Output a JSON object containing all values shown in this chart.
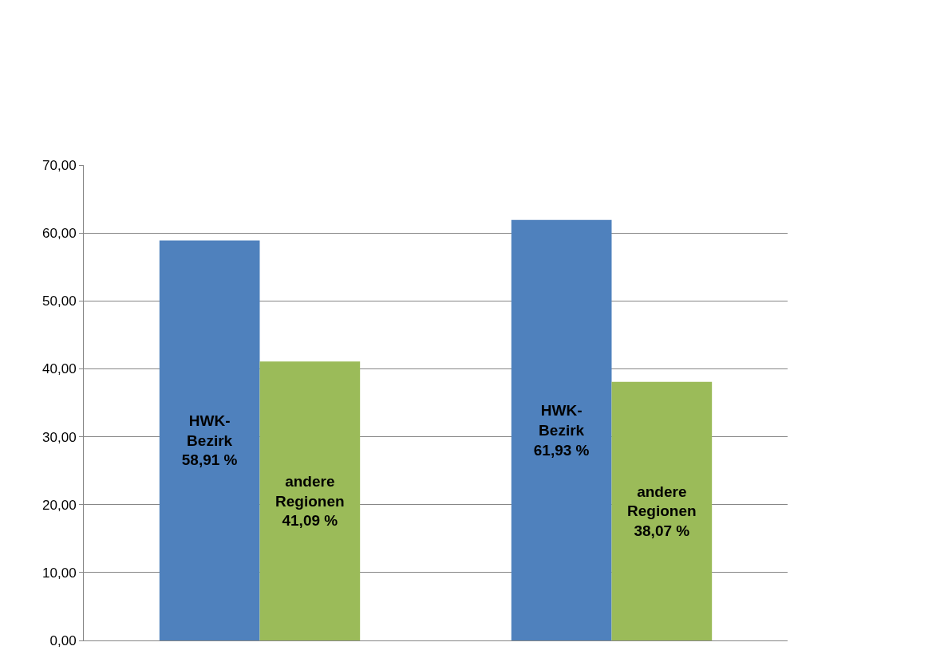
{
  "chart_data": {
    "type": "bar",
    "categories": [
      null,
      null
    ],
    "series": [
      {
        "color": "#4f81bd",
        "values": [
          58.91,
          61.93
        ],
        "value_labels": [
          "HWK-\nBezirk\n58,91 %",
          "HWK-\nBezirk\n61,93 %"
        ]
      },
      {
        "color": "#9bbb59",
        "values": [
          41.09,
          38.07
        ],
        "value_labels": [
          "andere\nRegionen\n41,09 %",
          "andere\nRegionen\n38,07 %"
        ]
      }
    ],
    "ylim": [
      0,
      70
    ],
    "yticks": [
      {
        "value": 0,
        "label": "0,00"
      },
      {
        "value": 10,
        "label": "10,00"
      },
      {
        "value": 20,
        "label": "20,00"
      },
      {
        "value": 30,
        "label": "30,00"
      },
      {
        "value": 40,
        "label": "40,00"
      },
      {
        "value": 50,
        "label": "50,00"
      },
      {
        "value": 60,
        "label": "60,00"
      },
      {
        "value": 70,
        "label": "70,00"
      }
    ],
    "grid": "y"
  }
}
